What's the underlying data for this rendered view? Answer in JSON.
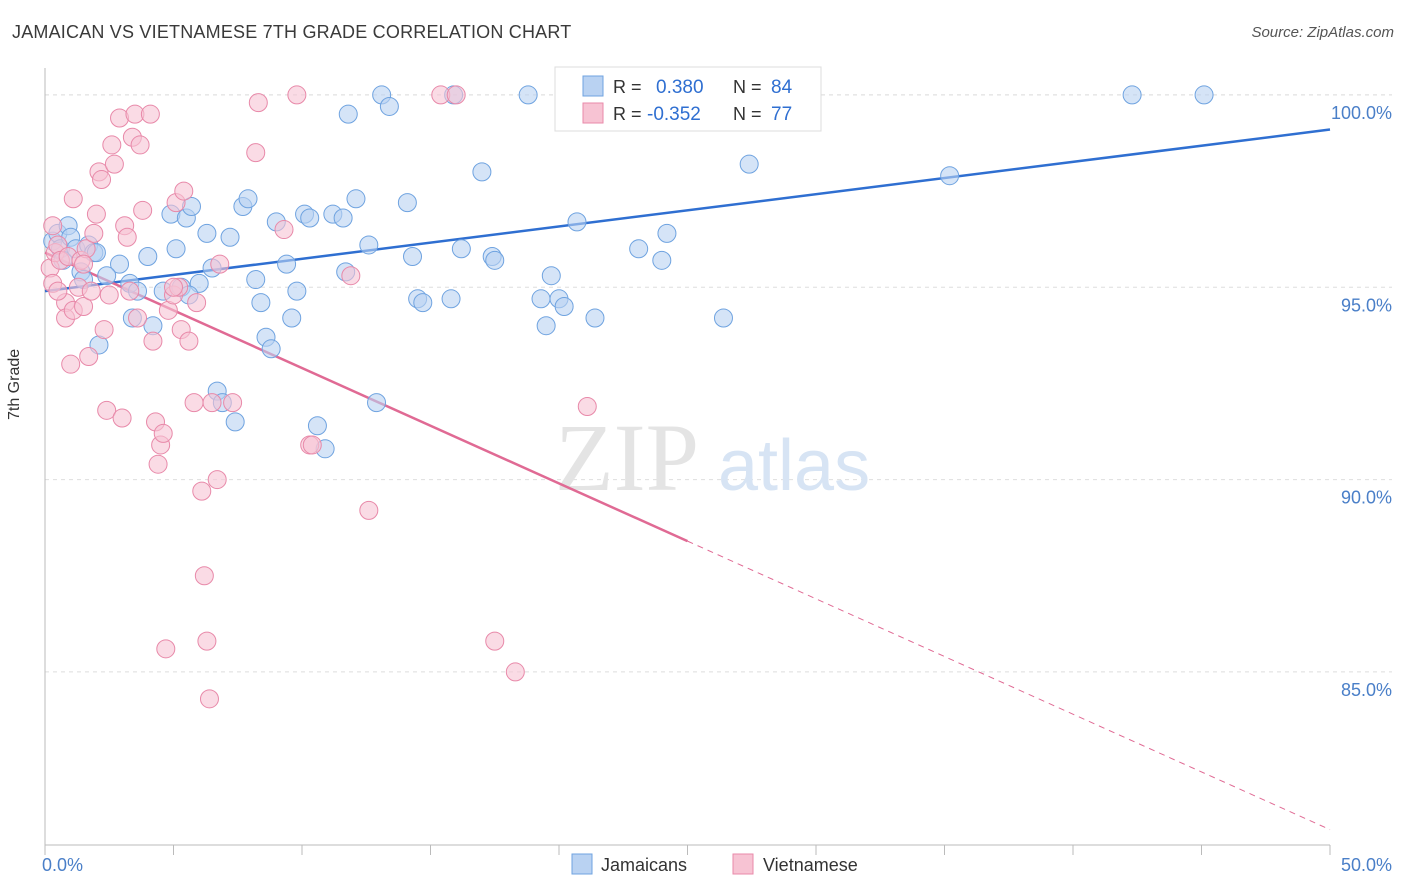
{
  "title": "JAMAICAN VS VIETNAMESE 7TH GRADE CORRELATION CHART",
  "source": "Source: ZipAtlas.com",
  "watermark": {
    "zip": "ZIP",
    "atlas": "atlas"
  },
  "colors": {
    "blue": "#6fa3e0",
    "blue_fill": "#b9d2f2",
    "blue_line": "#2f6fd1",
    "pink": "#e889a9",
    "pink_fill": "#f7c3d3",
    "pink_line": "#e06a94",
    "tick_text": "#4a7fc8",
    "grid": "#dedede"
  },
  "legend": {
    "rows": [
      {
        "r_label": "R =",
        "r_value": "0.380",
        "n_label": "N =",
        "n_value": "84"
      },
      {
        "r_label": "R =",
        "r_value": "-0.352",
        "n_label": "N =",
        "n_value": "77"
      }
    ]
  },
  "chart_data": {
    "type": "scatter",
    "title": "JAMAICAN VS VIETNAMESE 7TH GRADE CORRELATION CHART",
    "xlabel": "",
    "ylabel": "7th Grade",
    "xlim": [
      0,
      50
    ],
    "ylim": [
      80.5,
      100.7
    ],
    "x_tick_labels": [
      "0.0%",
      "50.0%"
    ],
    "y_ticks": [
      100,
      95,
      90,
      85
    ],
    "y_tick_labels": [
      "100.0%",
      "95.0%",
      "90.0%",
      "85.0%"
    ],
    "grid": true,
    "legend_position": "bottom-center",
    "series": [
      {
        "name": "Jamaicans",
        "points": [
          [
            0.3,
            96.2
          ],
          [
            0.5,
            96.4
          ],
          [
            0.6,
            96.0
          ],
          [
            0.7,
            95.7
          ],
          [
            0.9,
            96.6
          ],
          [
            1.0,
            96.3
          ],
          [
            1.2,
            96.0
          ],
          [
            1.4,
            95.4
          ],
          [
            1.5,
            95.2
          ],
          [
            1.7,
            96.1
          ],
          [
            1.9,
            95.9
          ],
          [
            2.0,
            95.9
          ],
          [
            2.1,
            93.5
          ],
          [
            2.9,
            95.6
          ],
          [
            3.3,
            95.1
          ],
          [
            3.4,
            94.2
          ],
          [
            3.6,
            94.9
          ],
          [
            4.0,
            95.8
          ],
          [
            4.2,
            94.0
          ],
          [
            4.6,
            94.9
          ],
          [
            4.9,
            96.9
          ],
          [
            5.1,
            96.0
          ],
          [
            5.3,
            95.0
          ],
          [
            5.5,
            96.8
          ],
          [
            5.7,
            97.1
          ],
          [
            6.0,
            95.1
          ],
          [
            6.3,
            96.4
          ],
          [
            6.5,
            95.5
          ],
          [
            6.7,
            92.3
          ],
          [
            6.9,
            92.0
          ],
          [
            7.2,
            96.3
          ],
          [
            7.4,
            91.5
          ],
          [
            7.7,
            97.1
          ],
          [
            7.9,
            97.3
          ],
          [
            8.2,
            95.2
          ],
          [
            8.4,
            94.6
          ],
          [
            8.6,
            93.7
          ],
          [
            8.8,
            93.4
          ],
          [
            9.0,
            96.7
          ],
          [
            9.4,
            95.6
          ],
          [
            9.6,
            94.2
          ],
          [
            9.8,
            94.9
          ],
          [
            10.1,
            96.9
          ],
          [
            10.3,
            96.8
          ],
          [
            10.6,
            91.4
          ],
          [
            10.9,
            90.8
          ],
          [
            11.2,
            96.9
          ],
          [
            11.6,
            96.8
          ],
          [
            11.7,
            95.4
          ],
          [
            11.8,
            99.5
          ],
          [
            12.1,
            97.3
          ],
          [
            12.6,
            96.1
          ],
          [
            12.9,
            92.0
          ],
          [
            13.1,
            100.0
          ],
          [
            13.4,
            99.7
          ],
          [
            14.1,
            97.2
          ],
          [
            14.3,
            95.8
          ],
          [
            14.5,
            94.7
          ],
          [
            14.7,
            94.6
          ],
          [
            15.8,
            94.7
          ],
          [
            16.2,
            96.0
          ],
          [
            17.0,
            98.0
          ],
          [
            17.4,
            95.8
          ],
          [
            17.5,
            95.7
          ],
          [
            18.8,
            100.0
          ],
          [
            19.3,
            94.7
          ],
          [
            19.5,
            94.0
          ],
          [
            19.7,
            95.3
          ],
          [
            20.0,
            94.7
          ],
          [
            20.2,
            94.5
          ],
          [
            20.7,
            96.7
          ],
          [
            21.4,
            94.2
          ],
          [
            23.1,
            96.0
          ],
          [
            24.0,
            95.7
          ],
          [
            24.2,
            96.4
          ],
          [
            26.4,
            94.2
          ],
          [
            26.8,
            100.0
          ],
          [
            27.4,
            98.2
          ],
          [
            35.2,
            97.9
          ],
          [
            42.3,
            100.0
          ],
          [
            45.1,
            100.0
          ],
          [
            15.9,
            100.0
          ],
          [
            5.6,
            94.8
          ],
          [
            2.4,
            95.3
          ]
        ],
        "trend": {
          "x": [
            0,
            50
          ],
          "y": [
            94.9,
            99.1
          ]
        }
      },
      {
        "name": "Vietnamese",
        "points": [
          [
            0.2,
            95.5
          ],
          [
            0.3,
            96.6
          ],
          [
            0.3,
            95.1
          ],
          [
            0.4,
            95.9
          ],
          [
            0.5,
            96.1
          ],
          [
            0.6,
            95.7
          ],
          [
            0.8,
            94.6
          ],
          [
            0.8,
            94.2
          ],
          [
            0.9,
            95.8
          ],
          [
            1.0,
            93.0
          ],
          [
            1.1,
            94.4
          ],
          [
            1.1,
            97.3
          ],
          [
            1.3,
            95.0
          ],
          [
            1.4,
            95.7
          ],
          [
            1.5,
            94.5
          ],
          [
            1.6,
            96.0
          ],
          [
            1.7,
            93.2
          ],
          [
            1.8,
            94.9
          ],
          [
            1.9,
            96.4
          ],
          [
            2.0,
            96.9
          ],
          [
            2.1,
            98.0
          ],
          [
            2.2,
            97.8
          ],
          [
            2.3,
            93.9
          ],
          [
            2.4,
            91.8
          ],
          [
            2.6,
            98.7
          ],
          [
            2.7,
            98.2
          ],
          [
            2.9,
            99.4
          ],
          [
            3.0,
            91.6
          ],
          [
            3.1,
            96.6
          ],
          [
            3.2,
            96.3
          ],
          [
            3.3,
            94.9
          ],
          [
            3.4,
            98.9
          ],
          [
            3.5,
            99.5
          ],
          [
            3.6,
            94.2
          ],
          [
            3.7,
            98.7
          ],
          [
            3.8,
            97.0
          ],
          [
            4.1,
            99.5
          ],
          [
            4.2,
            93.6
          ],
          [
            4.3,
            91.5
          ],
          [
            4.4,
            90.4
          ],
          [
            4.5,
            90.9
          ],
          [
            4.6,
            91.2
          ],
          [
            4.8,
            94.4
          ],
          [
            5.0,
            94.8
          ],
          [
            5.1,
            97.2
          ],
          [
            5.2,
            95.0
          ],
          [
            5.3,
            93.9
          ],
          [
            5.4,
            97.5
          ],
          [
            5.6,
            93.6
          ],
          [
            5.8,
            92.0
          ],
          [
            5.9,
            94.6
          ],
          [
            6.1,
            89.7
          ],
          [
            6.2,
            87.5
          ],
          [
            6.3,
            85.8
          ],
          [
            6.4,
            84.3
          ],
          [
            6.5,
            92.0
          ],
          [
            6.7,
            90.0
          ],
          [
            6.8,
            95.6
          ],
          [
            7.3,
            92.0
          ],
          [
            8.3,
            99.8
          ],
          [
            8.2,
            98.5
          ],
          [
            9.3,
            96.5
          ],
          [
            9.8,
            100.0
          ],
          [
            10.3,
            90.9
          ],
          [
            10.4,
            90.9
          ],
          [
            11.9,
            95.3
          ],
          [
            12.6,
            89.2
          ],
          [
            15.4,
            100.0
          ],
          [
            16.0,
            100.0
          ],
          [
            17.5,
            85.8
          ],
          [
            18.3,
            85.0
          ],
          [
            21.1,
            91.9
          ],
          [
            4.7,
            85.6
          ],
          [
            2.5,
            94.8
          ],
          [
            1.5,
            95.6
          ],
          [
            0.5,
            94.9
          ],
          [
            5.0,
            95.0
          ]
        ],
        "trend": {
          "x": [
            0,
            25
          ],
          "y": [
            95.9,
            88.4
          ]
        },
        "trend_dashed": {
          "x": [
            25,
            50
          ],
          "y": [
            88.4,
            80.9
          ]
        }
      }
    ]
  }
}
